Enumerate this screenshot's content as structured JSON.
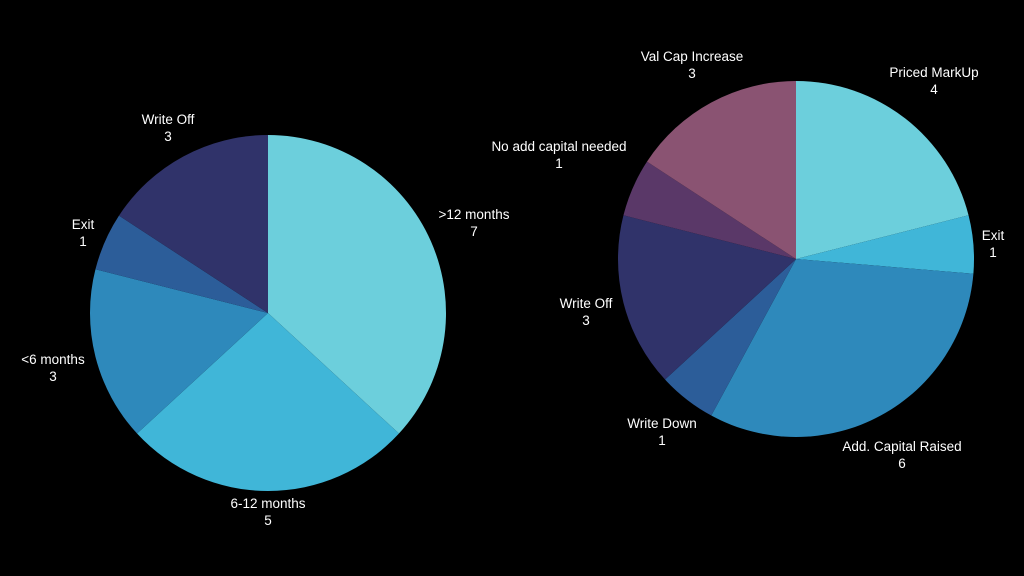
{
  "chart_data": [
    {
      "type": "pie",
      "title": "",
      "start_angle_deg": 0,
      "direction": "clockwise",
      "legend": "none",
      "slices": [
        {
          "label": ">12 months",
          "value": 7,
          "color": "#6ccfdc"
        },
        {
          "label": "6-12 months",
          "value": 5,
          "color": "#40b6d8"
        },
        {
          "label": "<6 months",
          "value": 3,
          "color": "#2e89bb"
        },
        {
          "label": "Exit",
          "value": 1,
          "color": "#2c5d99"
        },
        {
          "label": "Write Off",
          "value": 3,
          "color": "#30336a"
        }
      ]
    },
    {
      "type": "pie",
      "title": "",
      "start_angle_deg": 0,
      "direction": "clockwise",
      "legend": "none",
      "slices": [
        {
          "label": "Priced MarkUp",
          "value": 4,
          "color": "#6ccfdc"
        },
        {
          "label": "Exit",
          "value": 1,
          "color": "#40b6d8"
        },
        {
          "label": "Add. Capital Raised",
          "value": 6,
          "color": "#2e89bb"
        },
        {
          "label": "Write Down",
          "value": 1,
          "color": "#2c5d99"
        },
        {
          "label": "Write Off",
          "value": 3,
          "color": "#30336a"
        },
        {
          "label": "No add capital needed",
          "value": 1,
          "color": "#5a3868"
        },
        {
          "label": "Val Cap Increase",
          "value": 3,
          "color": "#8a5372"
        }
      ]
    }
  ]
}
